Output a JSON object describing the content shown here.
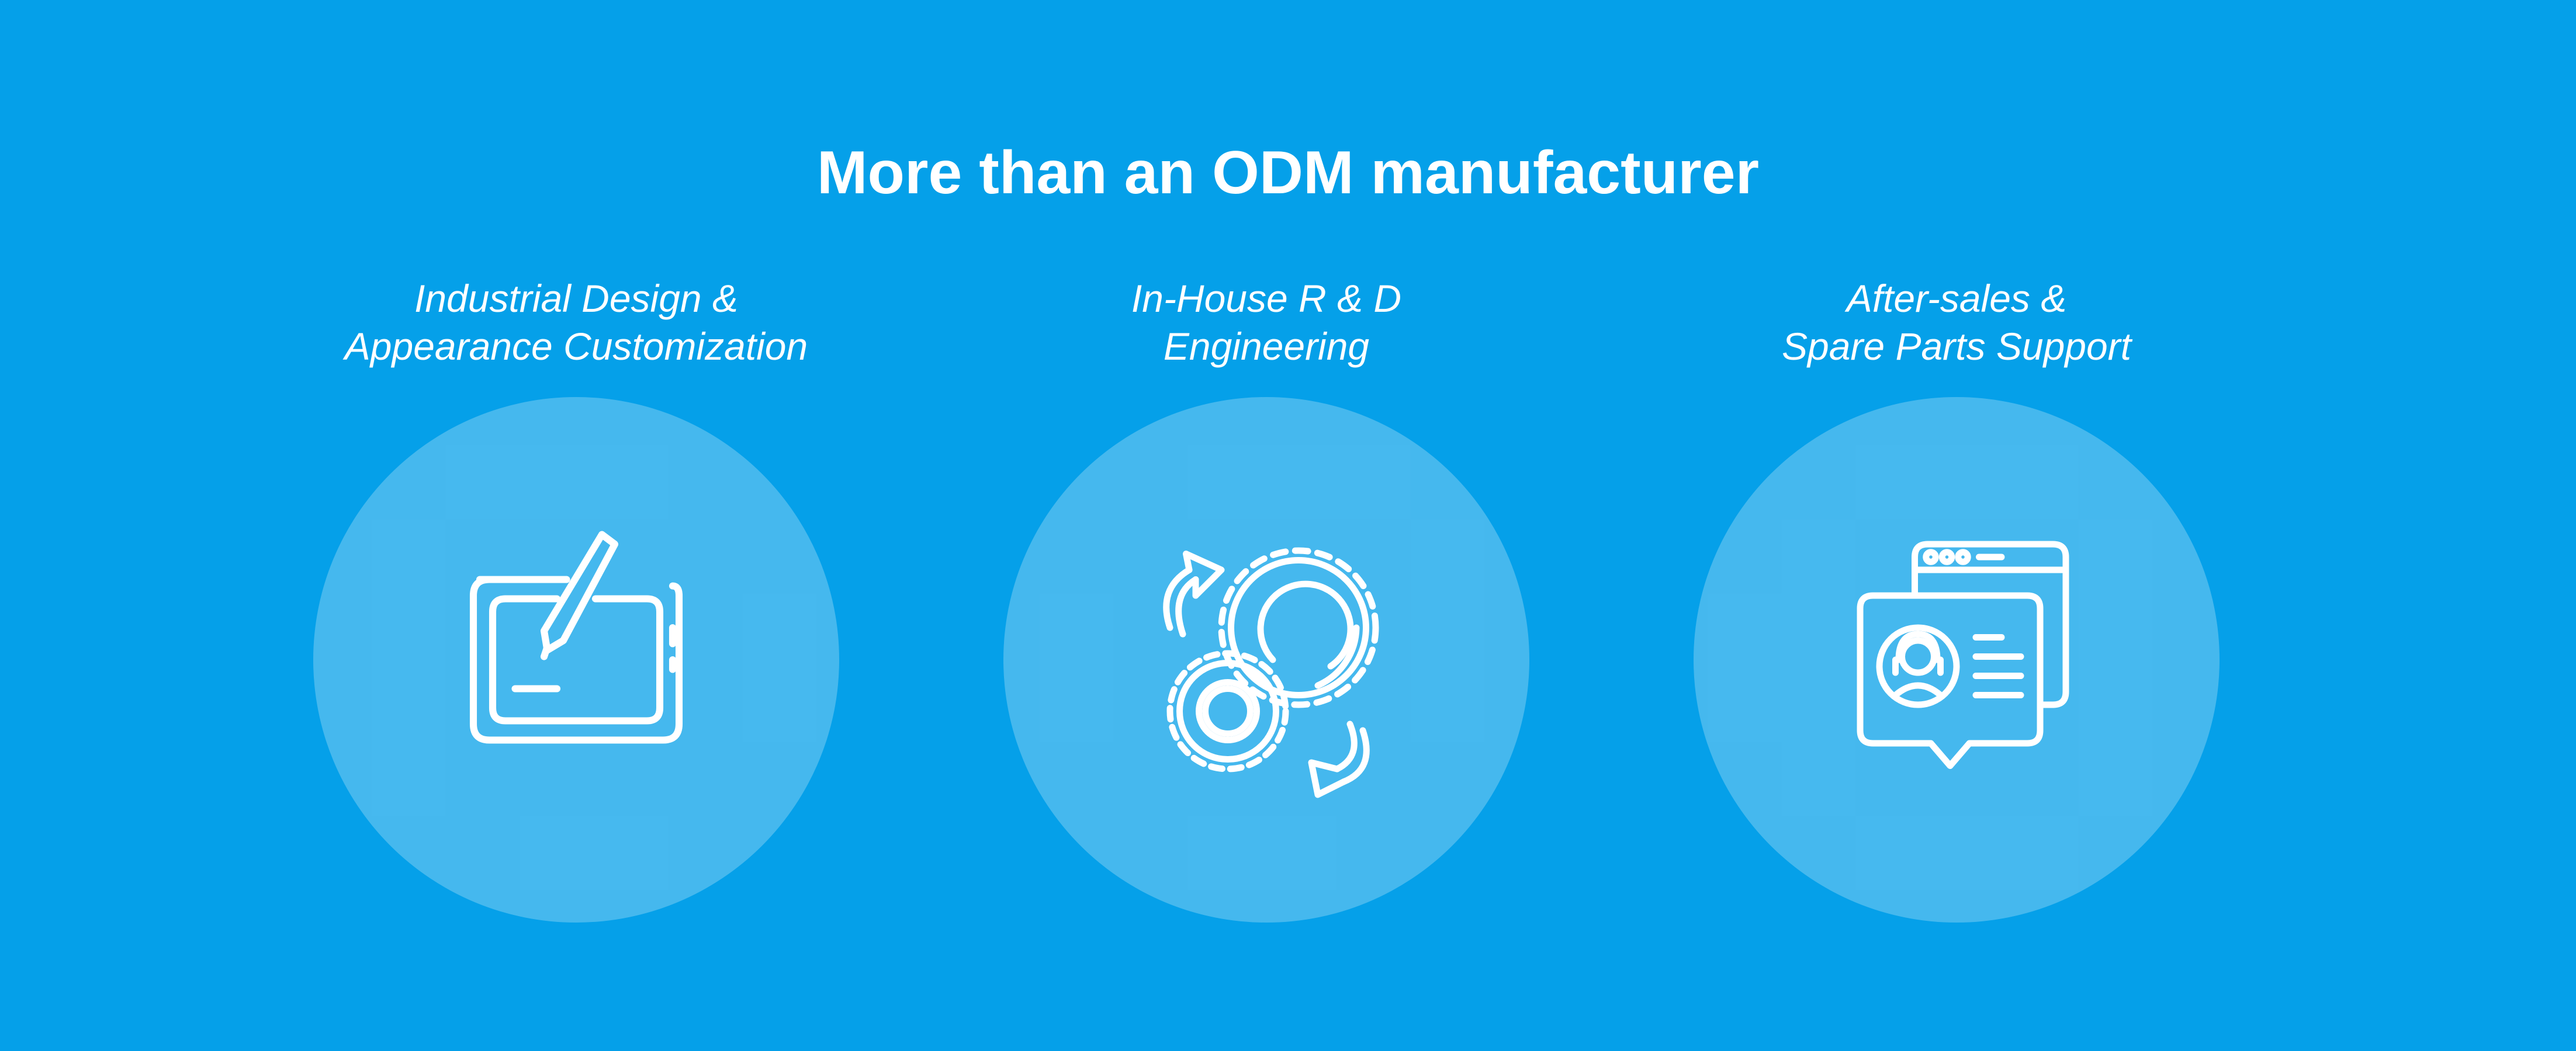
{
  "page": {
    "title": "More than an ODM manufacturer",
    "background_color": "#05a0e9",
    "text_color": "#ffffff"
  },
  "features": [
    {
      "line1": "Industrial Design &",
      "line2": "Appearance Customization",
      "icon": "drawing-tablet-icon"
    },
    {
      "line1": "In-House R & D",
      "line2": "Engineering",
      "icon": "gears-cycle-icon"
    },
    {
      "line1": "After-sales &",
      "line2": "Spare Parts Support",
      "icon": "customer-support-window-icon"
    }
  ]
}
